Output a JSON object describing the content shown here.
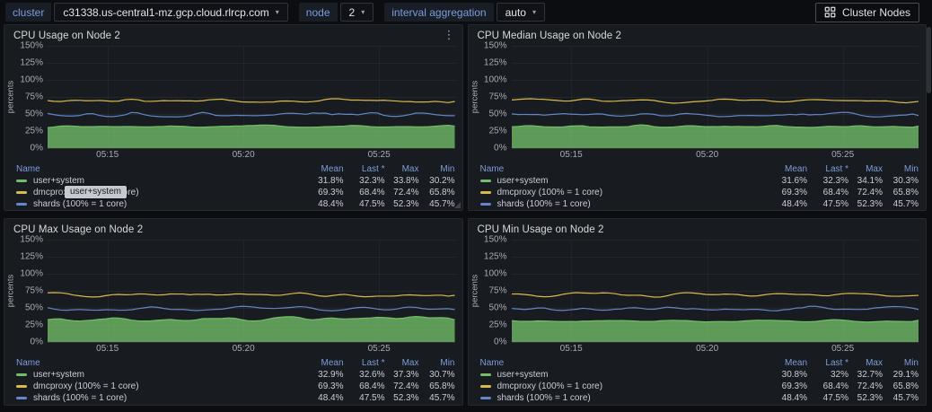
{
  "toolbar": {
    "variables": [
      {
        "label": "cluster",
        "value": "c31338.us-central1-mz.gcp.cloud.rlrcp.com"
      },
      {
        "label": "node",
        "value": "2"
      },
      {
        "label": "interval aggregation",
        "value": "auto"
      }
    ],
    "cluster_nodes_label": "Cluster Nodes"
  },
  "icons": {
    "kebab": "⋮",
    "caret": "▾"
  },
  "chart": {
    "y_axis_label": "percents",
    "y_ticks": [
      "150%",
      "125%",
      "100%",
      "75%",
      "50%",
      "25%",
      "0%"
    ],
    "x_ticks": [
      "05:15",
      "05:20",
      "05:25"
    ]
  },
  "legend": {
    "headers": [
      "Name",
      "Mean",
      "Last *",
      "Max",
      "Min"
    ]
  },
  "tooltip": {
    "text": "user+system"
  },
  "colors": {
    "green": "#73BF69",
    "yellow": "#D9BB4D",
    "blue": "#6286C9",
    "panel_bg": "#181B1F",
    "page_bg": "#0C0D10",
    "link": "#7B9DDB"
  },
  "panels": [
    {
      "title": "CPU Usage on Node 2",
      "series": [
        {
          "name": "user+system",
          "color": "#73BF69",
          "fill": true,
          "stats": [
            "31.8%",
            "32.3%",
            "33.8%",
            "30.2%"
          ]
        },
        {
          "name": "dmcproxy (100% = 1 core)",
          "color": "#D9BB4D",
          "fill": false,
          "stats": [
            "69.3%",
            "68.4%",
            "72.4%",
            "65.8%"
          ]
        },
        {
          "name": "shards (100% = 1 core)",
          "color": "#6286C9",
          "fill": false,
          "stats": [
            "48.4%",
            "47.5%",
            "52.3%",
            "45.7%"
          ]
        }
      ]
    },
    {
      "title": "CPU Median Usage on Node 2",
      "series": [
        {
          "name": "user+system",
          "color": "#73BF69",
          "fill": true,
          "stats": [
            "31.6%",
            "32.3%",
            "34.1%",
            "30.3%"
          ]
        },
        {
          "name": "dmcproxy (100% = 1 core)",
          "color": "#D9BB4D",
          "fill": false,
          "stats": [
            "69.3%",
            "68.4%",
            "72.4%",
            "65.8%"
          ]
        },
        {
          "name": "shards (100% = 1 core)",
          "color": "#6286C9",
          "fill": false,
          "stats": [
            "48.4%",
            "47.5%",
            "52.3%",
            "45.7%"
          ]
        }
      ]
    },
    {
      "title": "CPU Max Usage on Node 2",
      "series": [
        {
          "name": "user+system",
          "color": "#73BF69",
          "fill": true,
          "stats": [
            "32.9%",
            "32.6%",
            "37.3%",
            "30.7%"
          ]
        },
        {
          "name": "dmcproxy (100% = 1 core)",
          "color": "#D9BB4D",
          "fill": false,
          "stats": [
            "69.3%",
            "68.4%",
            "72.4%",
            "65.8%"
          ]
        },
        {
          "name": "shards (100% = 1 core)",
          "color": "#6286C9",
          "fill": false,
          "stats": [
            "48.4%",
            "47.5%",
            "52.3%",
            "45.7%"
          ]
        }
      ]
    },
    {
      "title": "CPU Min Usage on Node 2",
      "series": [
        {
          "name": "user+system",
          "color": "#73BF69",
          "fill": true,
          "stats": [
            "30.8%",
            "32%",
            "32.7%",
            "29.1%"
          ]
        },
        {
          "name": "dmcproxy (100% = 1 core)",
          "color": "#D9BB4D",
          "fill": false,
          "stats": [
            "69.3%",
            "68.4%",
            "72.4%",
            "65.8%"
          ]
        },
        {
          "name": "shards (100% = 1 core)",
          "color": "#6286C9",
          "fill": false,
          "stats": [
            "48.4%",
            "47.5%",
            "52.3%",
            "45.7%"
          ]
        }
      ]
    }
  ]
}
